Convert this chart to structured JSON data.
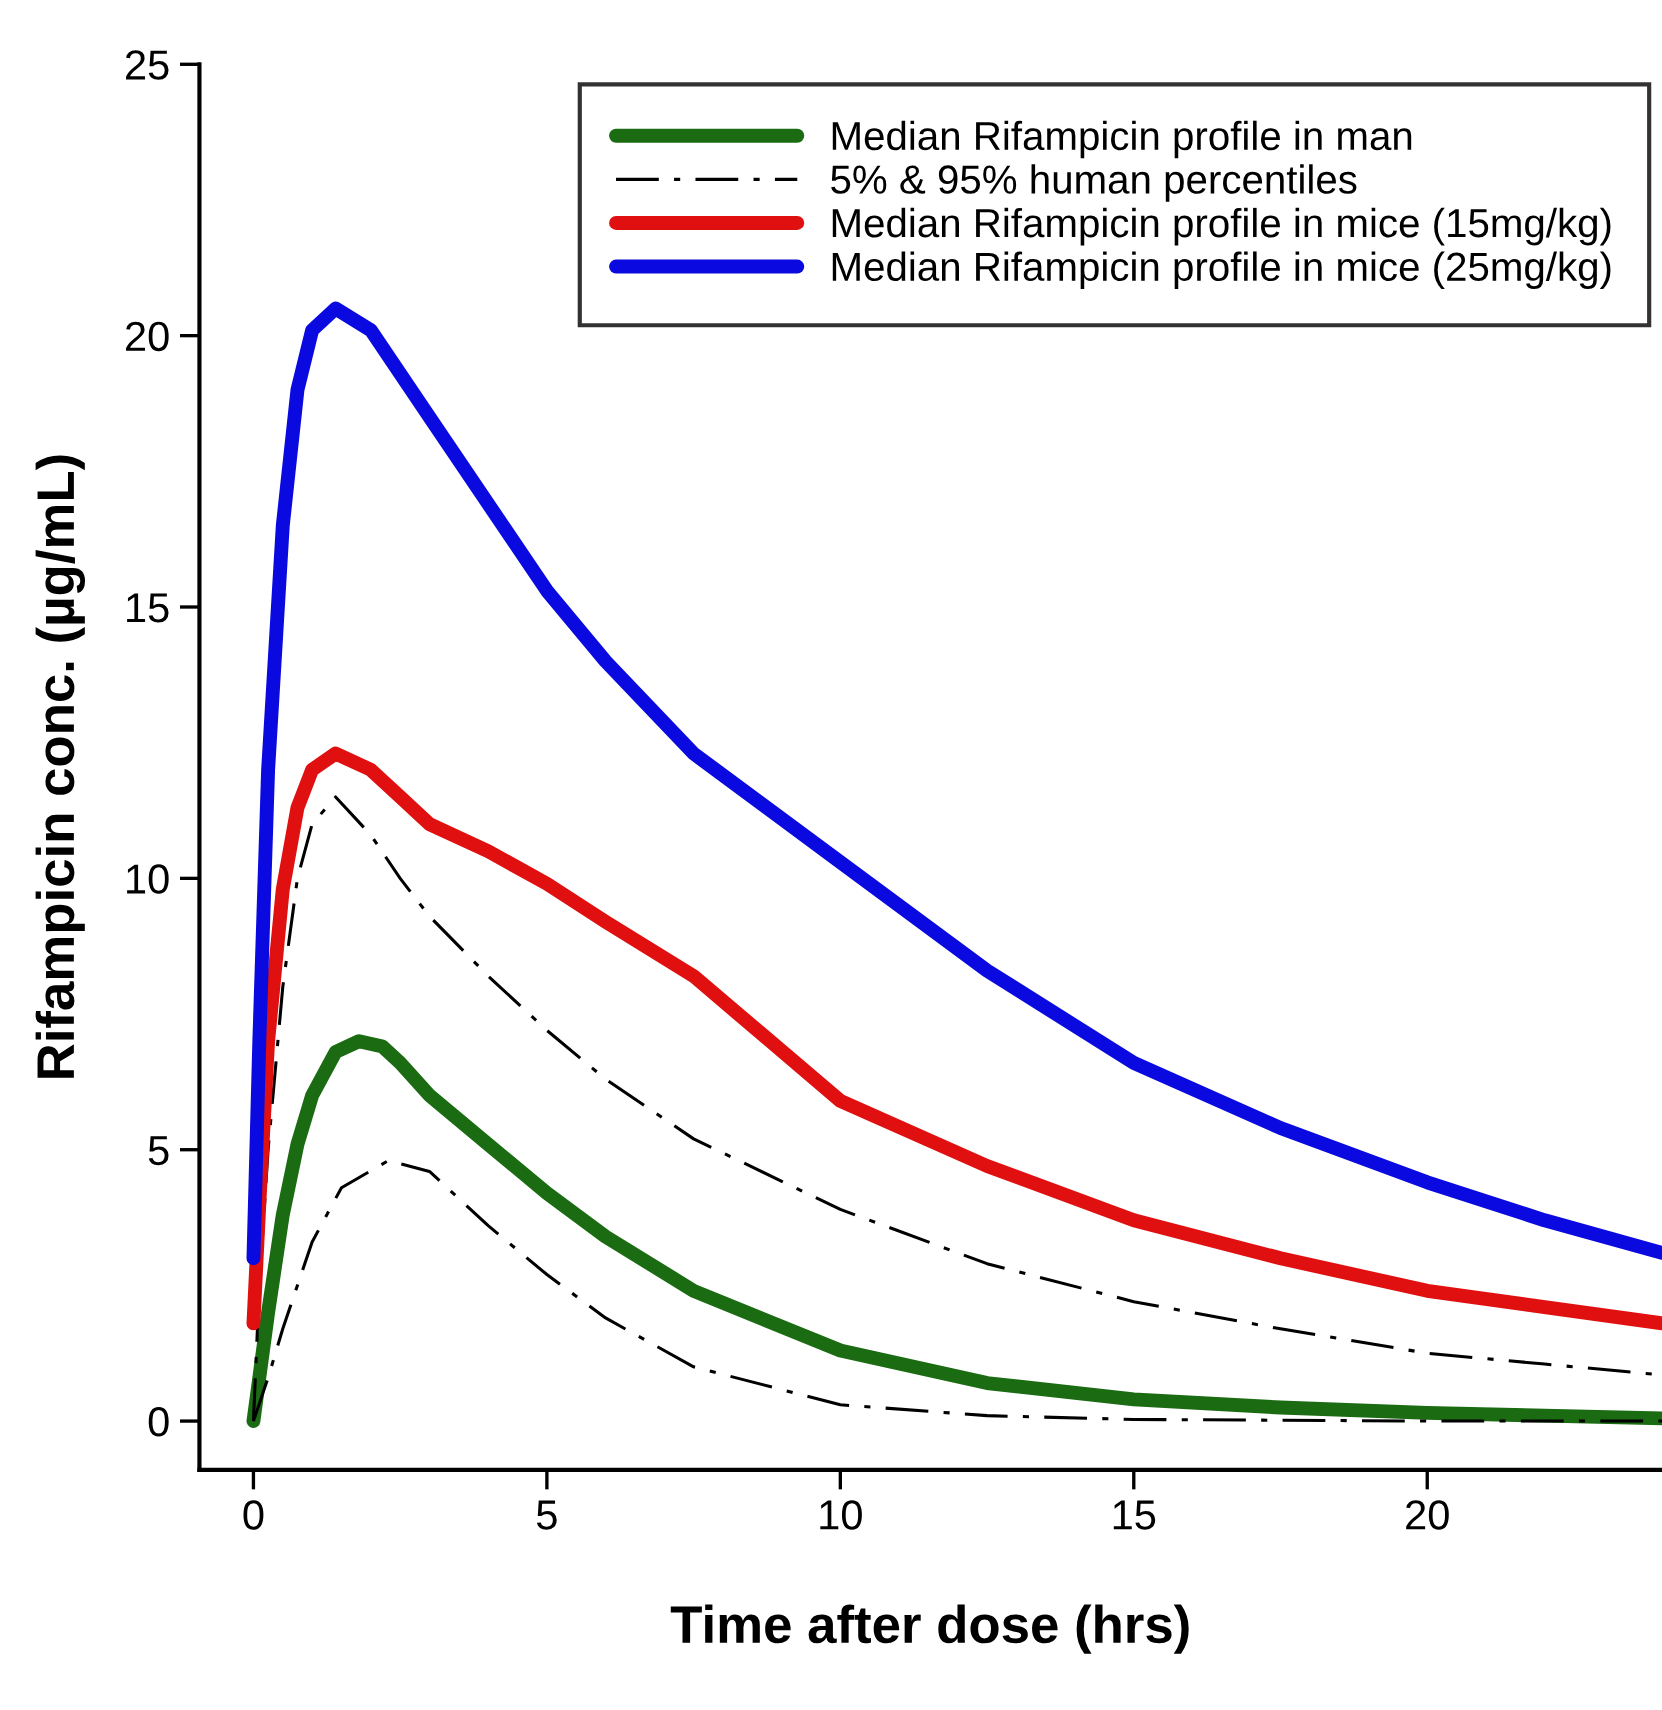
{
  "chart_data": {
    "type": "line",
    "xlabel": "Time after dose (hrs)",
    "ylabel": "Rifampicin conc. (µg/mL)",
    "xlim": [
      -0.92,
      24
    ],
    "ylim": [
      -0.9,
      25
    ],
    "xticks": [
      0,
      5,
      10,
      15,
      20
    ],
    "yticks": [
      0,
      5,
      10,
      15,
      20,
      25
    ],
    "grid": false,
    "legend": "top right",
    "marker": "none",
    "series": [
      {
        "name": "Median Rifampicin profile in man",
        "color": "#1a6b12",
        "line_style": "solid",
        "x": [
          0,
          0.1,
          0.25,
          0.5,
          0.75,
          1,
          1.4,
          1.8,
          2.2,
          2.5,
          3,
          4,
          5,
          6,
          7.5,
          10,
          12.5,
          15,
          17.5,
          20,
          22,
          24
        ],
        "values": [
          0,
          0.8,
          2,
          3.8,
          5.1,
          6.0,
          6.8,
          7.0,
          6.9,
          6.6,
          6.0,
          5.1,
          4.2,
          3.4,
          2.4,
          1.3,
          0.7,
          0.4,
          0.25,
          0.15,
          0.1,
          0.05
        ]
      },
      {
        "name": "5% & 95% human percentiles",
        "color": "#000000",
        "line_style": "dashdot",
        "x": [
          0,
          0.1,
          0.25,
          0.5,
          0.75,
          1,
          1.4,
          2,
          2.5,
          3,
          4,
          5,
          6,
          7.5,
          10,
          12.5,
          15,
          17.5,
          20,
          22,
          24
        ],
        "values": [
          0,
          2.5,
          5,
          8,
          10,
          11,
          11.5,
          10.8,
          10.0,
          9.3,
          8.2,
          7.2,
          6.3,
          5.2,
          3.9,
          2.9,
          2.2,
          1.7,
          1.25,
          1.05,
          0.85
        ]
      },
      {
        "color": "#000000",
        "line_style": "dashdot",
        "x": [
          0,
          0.25,
          0.5,
          1,
          1.5,
          2.3,
          3,
          4,
          5,
          6,
          7.5,
          10,
          12.5,
          15,
          20,
          24
        ],
        "values": [
          0,
          0.8,
          1.7,
          3.3,
          4.3,
          4.8,
          4.6,
          3.6,
          2.7,
          1.9,
          1.0,
          0.3,
          0.1,
          0.03,
          0,
          0
        ]
      },
      {
        "name": "Median Rifampicin profile in mice (15mg/kg)",
        "color": "#e01010",
        "line_style": "solid",
        "x": [
          0,
          0.1,
          0.25,
          0.5,
          0.75,
          1,
          1.4,
          2,
          2.5,
          3,
          4,
          5,
          6,
          7.5,
          10,
          12.5,
          15,
          17.5,
          20,
          22,
          24
        ],
        "values": [
          1.8,
          4,
          7,
          9.8,
          11.3,
          12.0,
          12.3,
          12.0,
          11.5,
          11.0,
          10.5,
          9.9,
          9.2,
          8.2,
          5.9,
          4.7,
          3.7,
          3.0,
          2.4,
          2.1,
          1.8
        ]
      },
      {
        "name": "Median Rifampicin profile in mice (25mg/kg)",
        "color": "#0a0ae0",
        "line_style": "solid",
        "x": [
          0,
          0.1,
          0.25,
          0.5,
          0.75,
          1,
          1.4,
          2,
          2.5,
          3,
          4,
          5,
          6,
          7.5,
          10,
          12.5,
          15,
          17.5,
          20,
          22,
          24
        ],
        "values": [
          3.0,
          7,
          12,
          16.5,
          19,
          20.1,
          20.5,
          20.1,
          19.3,
          18.5,
          16.9,
          15.3,
          14.0,
          12.3,
          10.3,
          8.3,
          6.6,
          5.4,
          4.4,
          3.7,
          3.1
        ]
      }
    ]
  }
}
